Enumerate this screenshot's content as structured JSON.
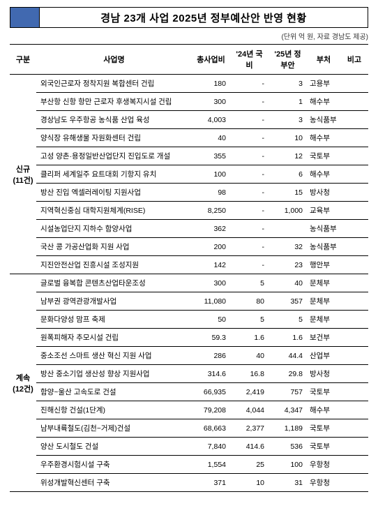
{
  "title": "경남 23개 사업 2025년 정부예산안 반영 현황",
  "subtitle": "(단위 억 원, 자료 경남도 제공)",
  "headers": {
    "gubun": "구분",
    "name": "사업명",
    "cost": "총사업비",
    "y24": "'24년 국비",
    "y25": "'25년 정부안",
    "dept": "부처",
    "bigo": "비고"
  },
  "groups": [
    {
      "label": "신규",
      "count": "(11건)",
      "rows": [
        {
          "name": "외국인근로자 정착지원 복합센터 건립",
          "cost": "180",
          "y24": "-",
          "y25": "3",
          "dept": "고용부"
        },
        {
          "name": "부산항 신항 항만 근로자 후생복지시설 건립",
          "cost": "300",
          "y24": "-",
          "y25": "1",
          "dept": "해수부"
        },
        {
          "name": "경상남도 우주항공 농식품 산업 육성",
          "cost": "4,003",
          "y24": "-",
          "y25": "3",
          "dept": "농식품부"
        },
        {
          "name": "양식장 유해생물 자원화센터 건립",
          "cost": "40",
          "y24": "-",
          "y25": "10",
          "dept": "해수부"
        },
        {
          "name": "고성 양촌·용정일반산업단지 진입도로 개설",
          "cost": "355",
          "y24": "-",
          "y25": "12",
          "dept": "국토부"
        },
        {
          "name": "클리퍼 세계일주 요트대회 기항지 유치",
          "cost": "100",
          "y24": "-",
          "y25": "6",
          "dept": "해수부"
        },
        {
          "name": "방산 진입 엑셀러레이팅 지원사업",
          "cost": "98",
          "y24": "-",
          "y25": "15",
          "dept": "방사청"
        },
        {
          "name": "지역혁신중심 대학지원체계(RISE)",
          "cost": "8,250",
          "y24": "-",
          "y25": "1,000",
          "dept": "교육부"
        },
        {
          "name": "시설농업단지 지하수 함양사업",
          "cost": "362",
          "y24": "-",
          "y25": "",
          "dept": "농식품부"
        },
        {
          "name": "국산 콩 가공산업화 지원 사업",
          "cost": "200",
          "y24": "-",
          "y25": "32",
          "dept": "농식품부"
        },
        {
          "name": "지진안전산업 진흥시설 조성지원",
          "cost": "142",
          "y24": "-",
          "y25": "23",
          "dept": "행안부"
        }
      ]
    },
    {
      "label": "계속",
      "count": "(12건)",
      "rows": [
        {
          "name": "글로벌 융복합 콘텐츠산업타운조성",
          "cost": "300",
          "y24": "5",
          "y25": "40",
          "dept": "문체부"
        },
        {
          "name": "남부권 광역관광개발사업",
          "cost": "11,080",
          "y24": "80",
          "y25": "357",
          "dept": "문체부"
        },
        {
          "name": "문화다양성 맘프 축제",
          "cost": "50",
          "y24": "5",
          "y25": "5",
          "dept": "문체부"
        },
        {
          "name": "원폭피해자 추모시설 건립",
          "cost": "59.3",
          "y24": "1.6",
          "y25": "1.6",
          "dept": "보건부"
        },
        {
          "name": "중소조선 스마트 생산 혁신 지원 사업",
          "cost": "286",
          "y24": "40",
          "y25": "44.4",
          "dept": "산업부"
        },
        {
          "name": "방산 중소기업 생산성 향상 지원사업",
          "cost": "314.6",
          "y24": "16.8",
          "y25": "29.8",
          "dept": "방사청"
        },
        {
          "name": "함양~울산 고속도로 건설",
          "cost": "66,935",
          "y24": "2,419",
          "y25": "757",
          "dept": "국토부"
        },
        {
          "name": "진해신항 건설(1단계)",
          "cost": "79,208",
          "y24": "4,044",
          "y25": "4,347",
          "dept": "해수부"
        },
        {
          "name": "남부내륙철도(김천~거제)건설",
          "cost": "68,663",
          "y24": "2,377",
          "y25": "1,189",
          "dept": "국토부"
        },
        {
          "name": "양산 도시철도 건설",
          "cost": "7,840",
          "y24": "414.6",
          "y25": "536",
          "dept": "국토부"
        },
        {
          "name": "우주환경시험시설 구축",
          "cost": "1,554",
          "y24": "25",
          "y25": "100",
          "dept": "우항청"
        },
        {
          "name": "위성개발혁신센터 구축",
          "cost": "371",
          "y24": "10",
          "y25": "31",
          "dept": "우항청"
        }
      ]
    }
  ]
}
